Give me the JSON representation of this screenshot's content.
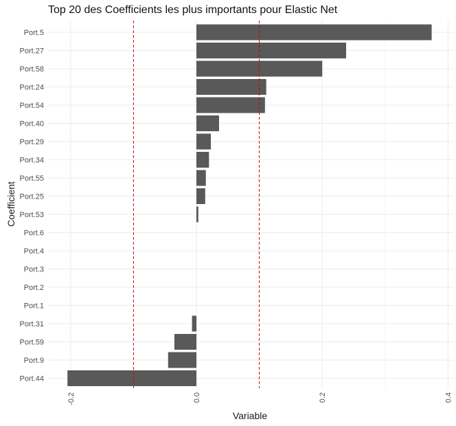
{
  "chart_data": {
    "type": "bar",
    "orientation": "horizontal",
    "title": "Top 20 des Coefficients les plus importants pour Elastic Net",
    "xlabel": "Variable",
    "ylabel": "Coefficient",
    "categories": [
      "Port.5",
      "Port.27",
      "Port.58",
      "Port.24",
      "Port.54",
      "Port.40",
      "Port.29",
      "Port.34",
      "Port.55",
      "Port.25",
      "Port.53",
      "Port.6",
      "Port.4",
      "Port.3",
      "Port.2",
      "Port.1",
      "Port.31",
      "Port.59",
      "Port.9",
      "Port.44"
    ],
    "values": [
      0.374,
      0.238,
      0.2,
      0.111,
      0.109,
      0.036,
      0.023,
      0.02,
      0.015,
      0.014,
      0.003,
      0,
      0,
      0,
      0,
      0,
      -0.007,
      -0.035,
      -0.045,
      -0.205
    ],
    "xlim": [
      -0.205,
      0.4
    ],
    "xticks": [
      "-0.2",
      "0.0",
      "0.2",
      "0.4"
    ],
    "reference_lines": [
      -0.1,
      0.1
    ],
    "grid": true,
    "colors": {
      "bar": "#595959",
      "reference_line": "#cc0000",
      "grid": "#ebebeb"
    }
  }
}
